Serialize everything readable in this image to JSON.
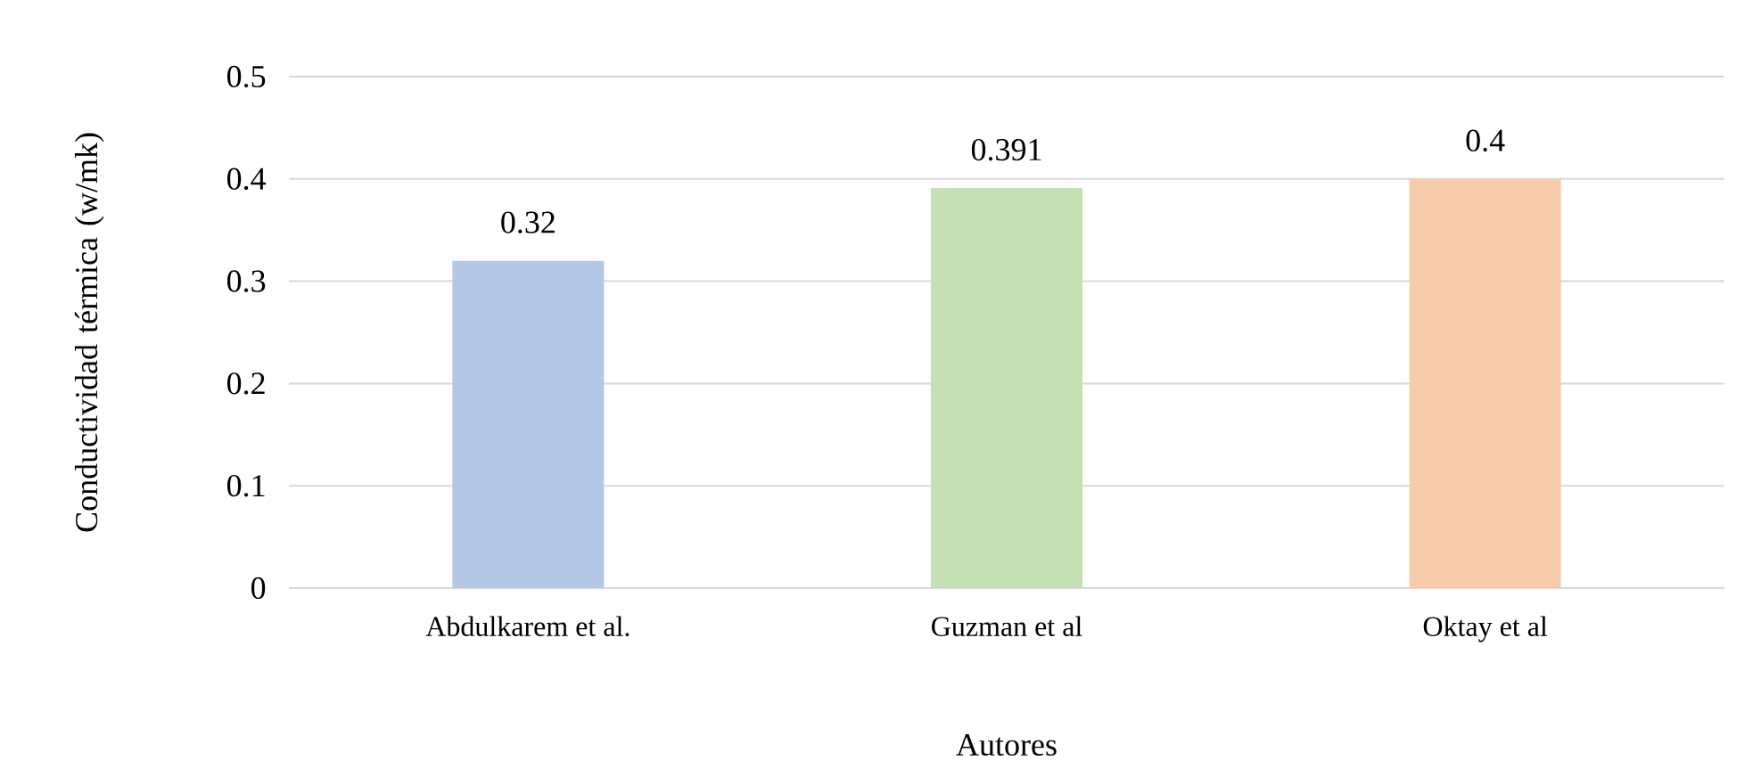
{
  "chart_data": {
    "type": "bar",
    "xlabel": "Autores",
    "ylabel": "Conductividad térmica (w/mk)",
    "categories": [
      "Abdulkarem et al.",
      "Guzman et al",
      "Oktay et al"
    ],
    "values": [
      0.32,
      0.391,
      0.4
    ],
    "colors": [
      "#b4c7e7",
      "#c5e0b4",
      "#f8cbad"
    ],
    "ylim": [
      0,
      0.5
    ],
    "yticks": [
      0,
      0.1,
      0.2,
      0.3,
      0.4,
      0.5
    ],
    "grid": "y",
    "data_labels": true
  }
}
